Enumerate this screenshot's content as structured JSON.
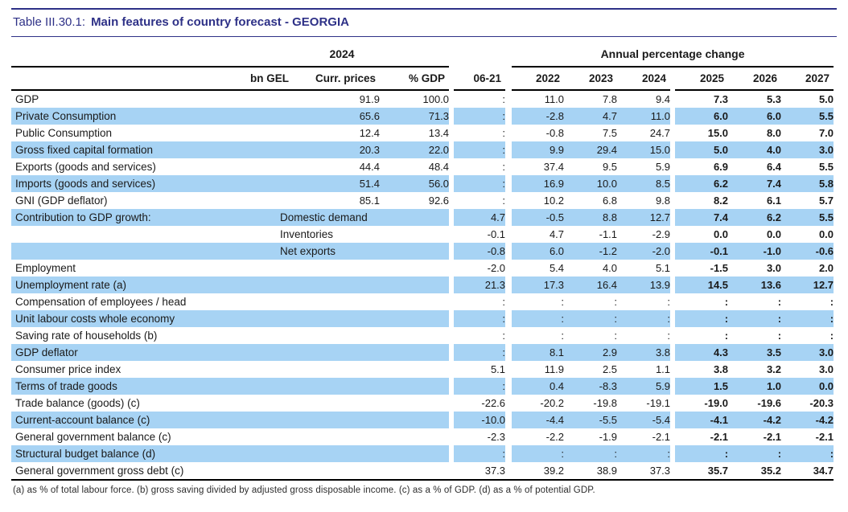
{
  "title": {
    "prefix": "Table III.30.1:",
    "main": "Main features of country forecast - GEORGIA"
  },
  "header": {
    "group_2024": "2024",
    "group_annual": "Annual percentage change",
    "col_bn": "bn GEL",
    "col_curr": "Curr. prices",
    "col_gdp": "% GDP",
    "col_0621": "06-21",
    "years": [
      "2022",
      "2023",
      "2024",
      "2025",
      "2026",
      "2027"
    ]
  },
  "rows": [
    {
      "label": "GDP",
      "curr": "91.9",
      "pgdp": "100.0",
      "c0621": ":",
      "y22": "11.0",
      "y23": "7.8",
      "y24": "9.4",
      "y25": "7.3",
      "y26": "5.3",
      "y27": "5.0"
    },
    {
      "label": "Private Consumption",
      "curr": "65.6",
      "pgdp": "71.3",
      "c0621": ":",
      "y22": "-2.8",
      "y23": "4.7",
      "y24": "11.0",
      "y25": "6.0",
      "y26": "6.0",
      "y27": "5.5"
    },
    {
      "label": "Public Consumption",
      "curr": "12.4",
      "pgdp": "13.4",
      "c0621": ":",
      "y22": "-0.8",
      "y23": "7.5",
      "y24": "24.7",
      "y25": "15.0",
      "y26": "8.0",
      "y27": "7.0"
    },
    {
      "label": "Gross fixed capital formation",
      "curr": "20.3",
      "pgdp": "22.0",
      "c0621": ":",
      "y22": "9.9",
      "y23": "29.4",
      "y24": "15.0",
      "y25": "5.0",
      "y26": "4.0",
      "y27": "3.0"
    },
    {
      "label": "Exports (goods and services)",
      "curr": "44.4",
      "pgdp": "48.4",
      "c0621": ":",
      "y22": "37.4",
      "y23": "9.5",
      "y24": "5.9",
      "y25": "6.9",
      "y26": "6.4",
      "y27": "5.5"
    },
    {
      "label": "Imports (goods and services)",
      "curr": "51.4",
      "pgdp": "56.0",
      "c0621": ":",
      "y22": "16.9",
      "y23": "10.0",
      "y24": "8.5",
      "y25": "6.2",
      "y26": "7.4",
      "y27": "5.8"
    },
    {
      "label": "GNI (GDP deflator)",
      "curr": "85.1",
      "pgdp": "92.6",
      "c0621": ":",
      "y22": "10.2",
      "y23": "6.8",
      "y24": "9.8",
      "y25": "8.2",
      "y26": "6.1",
      "y27": "5.7"
    },
    {
      "label": "Contribution to GDP growth:",
      "sub": "Domestic demand",
      "c0621": "4.7",
      "y22": "-0.5",
      "y23": "8.8",
      "y24": "12.7",
      "y25": "7.4",
      "y26": "6.2",
      "y27": "5.5"
    },
    {
      "label": "",
      "sub": "Inventories",
      "c0621": "-0.1",
      "y22": "4.7",
      "y23": "-1.1",
      "y24": "-2.9",
      "y25": "0.0",
      "y26": "0.0",
      "y27": "0.0"
    },
    {
      "label": "",
      "sub": "Net exports",
      "c0621": "-0.8",
      "y22": "6.0",
      "y23": "-1.2",
      "y24": "-2.0",
      "y25": "-0.1",
      "y26": "-1.0",
      "y27": "-0.6"
    },
    {
      "label": "Employment",
      "curr": "",
      "pgdp": "",
      "c0621": "-2.0",
      "y22": "5.4",
      "y23": "4.0",
      "y24": "5.1",
      "y25": "-1.5",
      "y26": "3.0",
      "y27": "2.0"
    },
    {
      "label": "Unemployment rate (a)",
      "curr": "",
      "pgdp": "",
      "c0621": "21.3",
      "y22": "17.3",
      "y23": "16.4",
      "y24": "13.9",
      "y25": "14.5",
      "y26": "13.6",
      "y27": "12.7"
    },
    {
      "label": "Compensation of employees / head",
      "curr": "",
      "pgdp": "",
      "c0621": ":",
      "y22": ":",
      "y23": ":",
      "y24": ":",
      "y25": ":",
      "y26": ":",
      "y27": ":"
    },
    {
      "label": "Unit labour costs whole economy",
      "curr": "",
      "pgdp": "",
      "c0621": ":",
      "y22": ":",
      "y23": ":",
      "y24": ":",
      "y25": ":",
      "y26": ":",
      "y27": ":"
    },
    {
      "label": "Saving rate of households (b)",
      "curr": "",
      "pgdp": "",
      "c0621": ":",
      "y22": ":",
      "y23": ":",
      "y24": ":",
      "y25": ":",
      "y26": ":",
      "y27": ":"
    },
    {
      "label": "GDP deflator",
      "curr": "",
      "pgdp": "",
      "c0621": ":",
      "y22": "8.1",
      "y23": "2.9",
      "y24": "3.8",
      "y25": "4.3",
      "y26": "3.5",
      "y27": "3.0"
    },
    {
      "label": "Consumer price index",
      "curr": "",
      "pgdp": "",
      "c0621": "5.1",
      "y22": "11.9",
      "y23": "2.5",
      "y24": "1.1",
      "y25": "3.8",
      "y26": "3.2",
      "y27": "3.0"
    },
    {
      "label": "Terms of trade goods",
      "curr": "",
      "pgdp": "",
      "c0621": ":",
      "y22": "0.4",
      "y23": "-8.3",
      "y24": "5.9",
      "y25": "1.5",
      "y26": "1.0",
      "y27": "0.0"
    },
    {
      "label": "Trade balance (goods) (c)",
      "curr": "",
      "pgdp": "",
      "c0621": "-22.6",
      "y22": "-20.2",
      "y23": "-19.8",
      "y24": "-19.1",
      "y25": "-19.0",
      "y26": "-19.6",
      "y27": "-20.3"
    },
    {
      "label": "Current-account balance (c)",
      "curr": "",
      "pgdp": "",
      "c0621": "-10.0",
      "y22": "-4.4",
      "y23": "-5.5",
      "y24": "-5.4",
      "y25": "-4.1",
      "y26": "-4.2",
      "y27": "-4.2"
    },
    {
      "label": "General government balance (c)",
      "curr": "",
      "pgdp": "",
      "c0621": "-2.3",
      "y22": "-2.2",
      "y23": "-1.9",
      "y24": "-2.1",
      "y25": "-2.1",
      "y26": "-2.1",
      "y27": "-2.1"
    },
    {
      "label": "Structural budget balance (d)",
      "curr": "",
      "pgdp": "",
      "c0621": ":",
      "y22": ":",
      "y23": ":",
      "y24": ":",
      "y25": ":",
      "y26": ":",
      "y27": ":"
    },
    {
      "label": "General government gross debt (c)",
      "curr": "",
      "pgdp": "",
      "c0621": "37.3",
      "y22": "39.2",
      "y23": "38.9",
      "y24": "37.3",
      "y25": "35.7",
      "y26": "35.2",
      "y27": "34.7"
    }
  ],
  "footnote": "(a) as % of total labour force. (b) gross saving divided by adjusted gross disposable income.  (c) as a % of GDP. (d) as a % of potential GDP.",
  "colors": {
    "accent_navy": "#2e3187",
    "row_highlight": "#a7d3f4"
  }
}
